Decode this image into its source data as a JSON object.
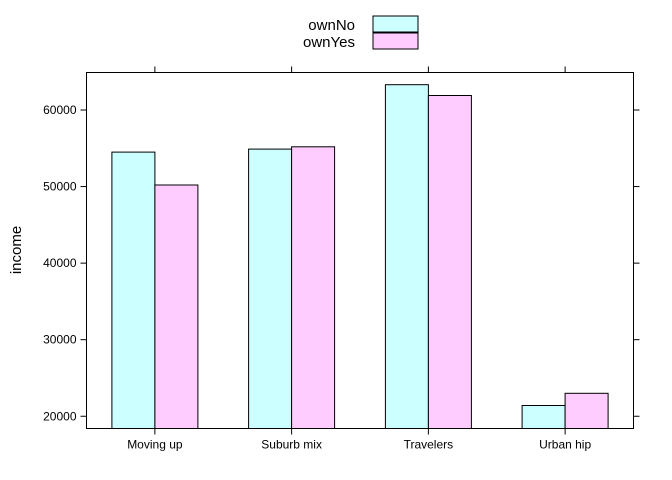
{
  "chart_data": {
    "type": "bar",
    "title": "",
    "xlabel": "",
    "ylabel": "income",
    "categories": [
      "Moving up",
      "Suburb mix",
      "Travelers",
      "Urban hip"
    ],
    "series": [
      {
        "name": "ownNo",
        "values": [
          54500,
          54900,
          63300,
          21400
        ],
        "color": "#ccffff"
      },
      {
        "name": "ownYes",
        "values": [
          50200,
          55200,
          61900,
          23000
        ],
        "color": "#ffccff"
      }
    ],
    "ylim": [
      18400,
      64900
    ],
    "yticks": [
      20000,
      30000,
      40000,
      50000,
      60000
    ],
    "ytick_labels": [
      "20000",
      "30000",
      "40000",
      "50000",
      "60000"
    ],
    "legend_placement": "top-center",
    "grid": false,
    "bar_border_color": "#000000"
  }
}
